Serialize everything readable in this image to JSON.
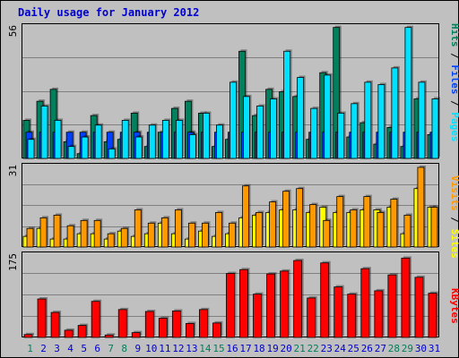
{
  "title": "Daily usage for January 2012",
  "colors": {
    "background": "#c0c0c0",
    "hits": "#00805c",
    "files": "#0040ff",
    "pages": "#00e0ff",
    "visits": "#ff9900",
    "sites": "#ffff00",
    "kbytes": "#ff0000",
    "weekend_day": "#00805c",
    "weekday": "#0000cc"
  },
  "chart_data": [
    {
      "type": "bar",
      "name": "top",
      "ymax_label": "56",
      "ylim": [
        0,
        56
      ],
      "legend": [
        "Pages",
        "Files",
        "Hits"
      ],
      "series": [
        {
          "name": "Hits",
          "values": [
            16,
            24,
            29,
            7,
            2,
            18,
            7,
            8,
            19,
            5,
            11,
            21,
            24,
            19,
            5,
            8,
            45,
            18,
            29,
            28,
            26,
            8,
            36,
            55,
            9,
            15,
            6,
            13,
            5,
            25,
            10
          ]
        },
        {
          "name": "Files",
          "values": [
            11,
            11,
            11,
            11,
            11,
            11,
            11,
            11,
            11,
            11,
            11,
            11,
            11,
            11,
            11,
            11,
            11,
            11,
            11,
            11,
            11,
            11,
            11,
            11,
            11,
            11,
            11,
            11,
            11,
            11,
            11
          ]
        },
        {
          "name": "Pages",
          "values": [
            8,
            22,
            16,
            5,
            9,
            14,
            4,
            16,
            9,
            14,
            16,
            16,
            10,
            19,
            14,
            32,
            26,
            22,
            25,
            45,
            34,
            21,
            35,
            19,
            23,
            32,
            31,
            38,
            55,
            32,
            25
          ]
        }
      ]
    },
    {
      "type": "bar",
      "name": "middle",
      "ymax_label": "31",
      "ylim": [
        0,
        31
      ],
      "legend": [
        "Sites",
        "Visits"
      ],
      "series": [
        {
          "name": "Sites",
          "values": [
            4,
            7,
            3,
            3,
            5,
            5,
            3,
            6,
            4,
            5,
            9,
            5,
            3,
            6,
            4,
            5,
            11,
            12,
            13,
            14,
            14,
            13,
            15,
            13,
            13,
            14,
            14,
            15,
            5,
            22,
            15
          ]
        },
        {
          "name": "Visits",
          "values": [
            7,
            11,
            12,
            8,
            10,
            10,
            5,
            7,
            14,
            9,
            11,
            14,
            9,
            9,
            13,
            9,
            23,
            13,
            17,
            21,
            22,
            16,
            10,
            19,
            14,
            19,
            13,
            18,
            12,
            30,
            15
          ]
        }
      ]
    },
    {
      "type": "bar",
      "name": "bottom",
      "ymax_label": "175",
      "ylim": [
        0,
        175
      ],
      "legend": [
        "KBytes"
      ],
      "series": [
        {
          "name": "KBytes",
          "values": [
            6,
            80,
            52,
            15,
            25,
            75,
            5,
            58,
            10,
            54,
            40,
            55,
            29,
            58,
            30,
            133,
            141,
            90,
            132,
            138,
            160,
            82,
            155,
            105,
            90,
            143,
            97,
            130,
            165,
            125,
            92
          ]
        }
      ]
    }
  ],
  "x_labels": [
    "1",
    "2",
    "3",
    "4",
    "5",
    "6",
    "7",
    "8",
    "9",
    "10",
    "11",
    "12",
    "13",
    "14",
    "15",
    "16",
    "17",
    "18",
    "19",
    "20",
    "21",
    "22",
    "23",
    "24",
    "25",
    "26",
    "27",
    "28",
    "29",
    "30",
    "31"
  ],
  "weekend_days": [
    1,
    7,
    8,
    14,
    15,
    21,
    22,
    28,
    29
  ]
}
